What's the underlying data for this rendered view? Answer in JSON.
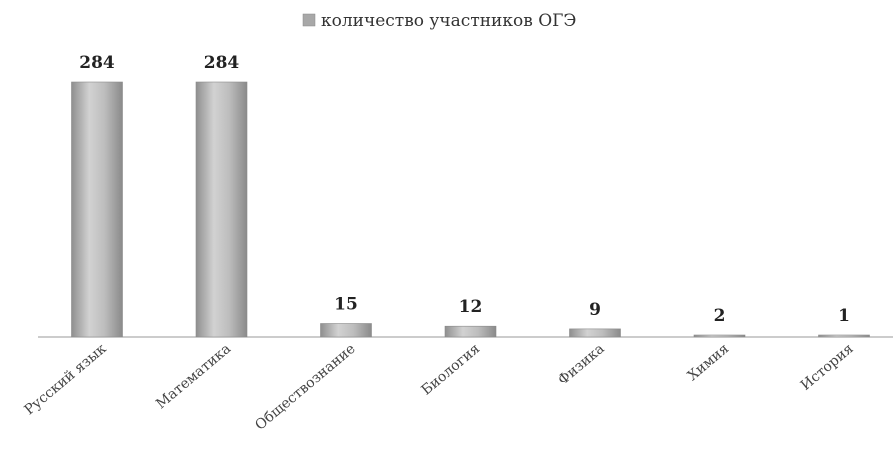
{
  "chart_data": {
    "type": "bar",
    "title": "",
    "xlabel": "",
    "ylabel": "",
    "categories": [
      "Русский язык",
      "Математика",
      "Обществознание",
      "Биология",
      "Физика",
      "Химия",
      "История"
    ],
    "series": [
      {
        "name": "количество участников ОГЭ",
        "values": [
          284,
          284,
          15,
          12,
          9,
          2,
          1
        ]
      }
    ],
    "ylim": [
      0,
      284
    ],
    "grid": false,
    "legend_position": "top-center",
    "show_data_labels": true,
    "bar_color": "#a8a8a8"
  }
}
